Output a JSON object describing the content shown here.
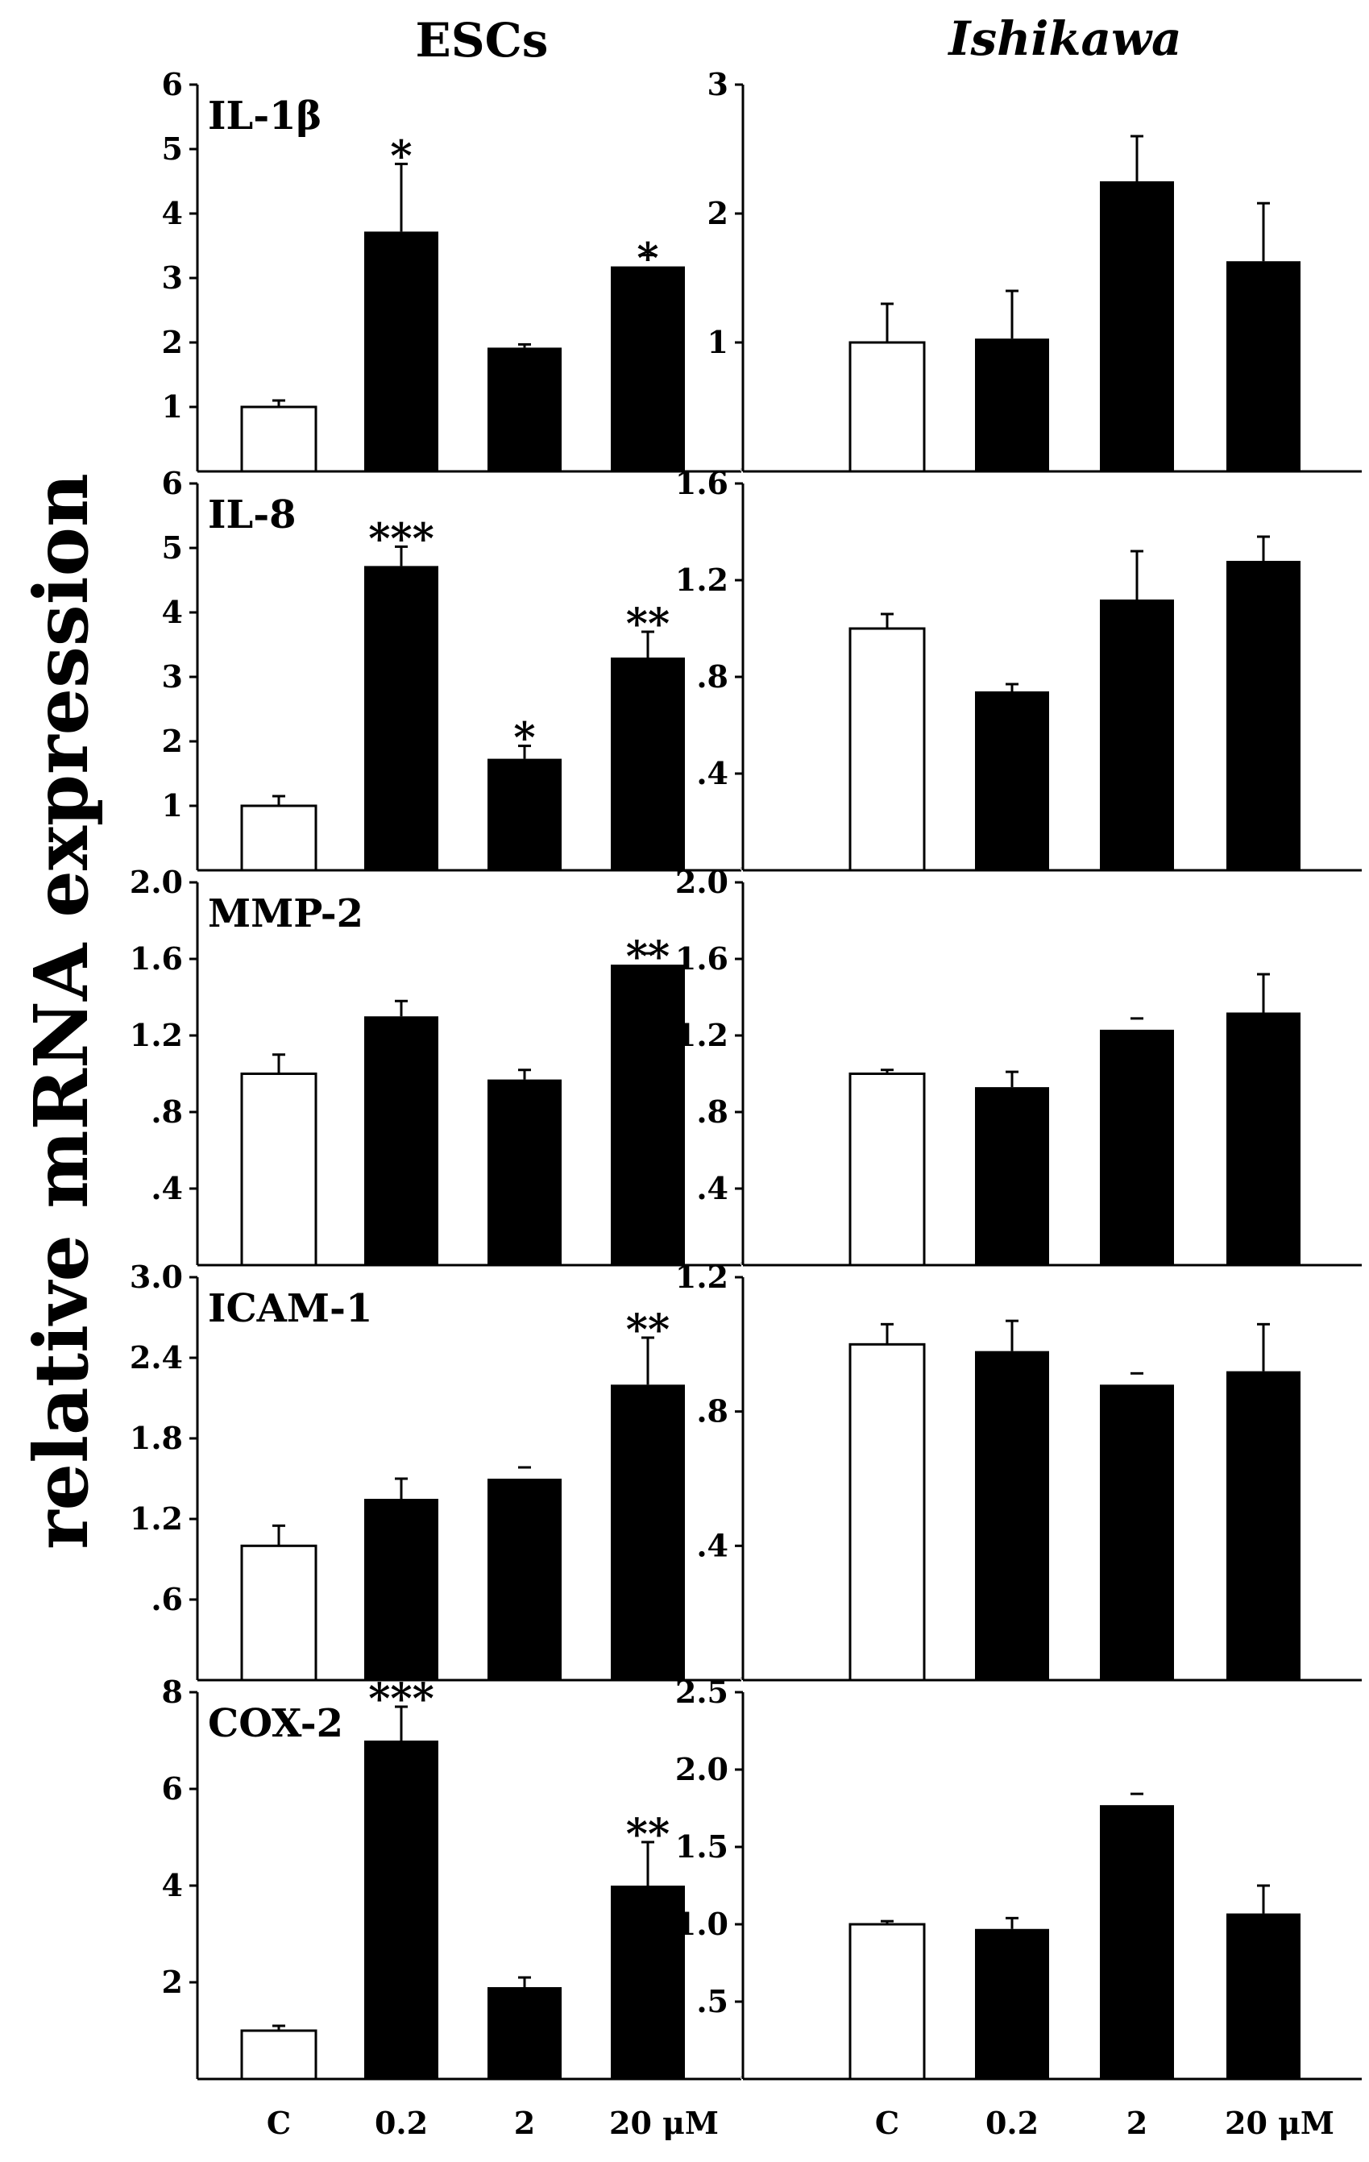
{
  "figure": {
    "column_titles": [
      "ESCs",
      "Ishikawa"
    ],
    "ylabel": "relative mRNA expression",
    "x_categories": [
      "C",
      "0.2",
      "2",
      "20 μM"
    ]
  },
  "colors": {
    "control": "#ffffff",
    "treated": "#000000",
    "axis": "#000000",
    "divider": "#cccccc"
  },
  "chart_data": [
    {
      "type": "bar",
      "column": "ESCs",
      "gene": "IL-1β",
      "categories": [
        "C",
        "0.2",
        "2",
        "20 μM"
      ],
      "values": [
        1.0,
        3.72,
        1.92,
        3.18
      ],
      "errors": [
        0.1,
        1.05,
        0.05,
        0.0
      ],
      "significance": [
        "",
        "*",
        "",
        "*"
      ],
      "ylim": [
        0,
        6
      ],
      "ticks": [
        1,
        2,
        3,
        4,
        5,
        6
      ],
      "tick_labels": [
        "1",
        "2",
        "3",
        "4",
        "5",
        "6"
      ]
    },
    {
      "type": "bar",
      "column": "Ishikawa",
      "gene": "",
      "categories": [
        "C",
        "0.2",
        "2",
        "20 μM"
      ],
      "values": [
        1.0,
        1.03,
        2.25,
        1.63
      ],
      "errors": [
        0.3,
        0.37,
        0.35,
        0.45
      ],
      "significance": [
        "",
        "",
        "",
        ""
      ],
      "ylim": [
        0,
        3
      ],
      "ticks": [
        1,
        2,
        3
      ],
      "tick_labels": [
        "1",
        "2",
        "3"
      ]
    },
    {
      "type": "bar",
      "column": "ESCs",
      "gene": "IL-8",
      "categories": [
        "C",
        "0.2",
        "2",
        "20 μM"
      ],
      "values": [
        1.0,
        4.72,
        1.73,
        3.3
      ],
      "errors": [
        0.15,
        0.3,
        0.2,
        0.4
      ],
      "significance": [
        "",
        "***",
        "*",
        "**"
      ],
      "ylim": [
        0,
        6
      ],
      "ticks": [
        1,
        2,
        3,
        4,
        5,
        6
      ],
      "tick_labels": [
        "1",
        "2",
        "3",
        "4",
        "5",
        "6"
      ]
    },
    {
      "type": "bar",
      "column": "Ishikawa",
      "gene": "",
      "categories": [
        "C",
        "0.2",
        "2",
        "20 μM"
      ],
      "values": [
        1.0,
        0.74,
        1.12,
        1.28
      ],
      "errors": [
        0.06,
        0.03,
        0.2,
        0.1
      ],
      "significance": [
        "",
        "",
        "",
        ""
      ],
      "ylim": [
        0,
        1.6
      ],
      "ticks": [
        0.4,
        0.8,
        1.2,
        1.6
      ],
      "tick_labels": [
        ".4",
        ".8",
        "1.2",
        "1.6"
      ]
    },
    {
      "type": "bar",
      "column": "ESCs",
      "gene": "MMP-2",
      "categories": [
        "C",
        "0.2",
        "2",
        "20 μM"
      ],
      "values": [
        1.0,
        1.3,
        0.97,
        1.57
      ],
      "errors": [
        0.1,
        0.08,
        0.05,
        0.0
      ],
      "significance": [
        "",
        "",
        "",
        "**"
      ],
      "ylim": [
        0,
        2.0
      ],
      "ticks": [
        0.4,
        0.8,
        1.2,
        1.6,
        2.0
      ],
      "tick_labels": [
        ".4",
        ".8",
        "1.2",
        "1.6",
        "2.0"
      ]
    },
    {
      "type": "bar",
      "column": "Ishikawa",
      "gene": "",
      "categories": [
        "C",
        "0.2",
        "2",
        "20 μM"
      ],
      "values": [
        1.0,
        0.93,
        1.23,
        1.32
      ],
      "errors": [
        0.02,
        0.08,
        0.0,
        0.2
      ],
      "significance": [
        "",
        "",
        "",
        ""
      ],
      "ylim": [
        0,
        2.0
      ],
      "ticks": [
        0.4,
        0.8,
        1.2,
        1.6,
        2.0
      ],
      "tick_labels": [
        ".4",
        ".8",
        "1.2",
        "1.6",
        "2.0"
      ]
    },
    {
      "type": "bar",
      "column": "ESCs",
      "gene": "ICAM-1",
      "categories": [
        "C",
        "0.2",
        "2",
        "20 μM"
      ],
      "values": [
        1.0,
        1.35,
        1.5,
        2.2
      ],
      "errors": [
        0.15,
        0.15,
        0.0,
        0.35
      ],
      "significance": [
        "",
        "",
        "",
        "**"
      ],
      "ylim": [
        0,
        3.0
      ],
      "ticks": [
        0.6,
        1.2,
        1.8,
        2.4,
        3.0
      ],
      "tick_labels": [
        ".6",
        "1.2",
        "1.8",
        "2.4",
        "3.0"
      ]
    },
    {
      "type": "bar",
      "column": "Ishikawa",
      "gene": "",
      "categories": [
        "C",
        "0.2",
        "2",
        "20 μM"
      ],
      "values": [
        1.0,
        0.98,
        0.88,
        0.92
      ],
      "errors": [
        0.06,
        0.09,
        0.0,
        0.14
      ],
      "significance": [
        "",
        "",
        "",
        ""
      ],
      "ylim": [
        0,
        1.2
      ],
      "ticks": [
        0.4,
        0.8,
        1.2
      ],
      "tick_labels": [
        ".4",
        ".8",
        "1.2"
      ]
    },
    {
      "type": "bar",
      "column": "ESCs",
      "gene": "COX-2",
      "categories": [
        "C",
        "0.2",
        "2",
        "20 μM"
      ],
      "values": [
        1.0,
        7.0,
        1.9,
        4.0
      ],
      "errors": [
        0.1,
        0.7,
        0.2,
        0.9
      ],
      "significance": [
        "",
        "***",
        "",
        "**"
      ],
      "ylim": [
        0,
        8
      ],
      "ticks": [
        2,
        4,
        6,
        8
      ],
      "tick_labels": [
        "2",
        "4",
        "6",
        "8"
      ]
    },
    {
      "type": "bar",
      "column": "Ishikawa",
      "gene": "",
      "categories": [
        "C",
        "0.2",
        "2",
        "20 μM"
      ],
      "values": [
        1.0,
        0.97,
        1.77,
        1.07
      ],
      "errors": [
        0.02,
        0.07,
        0.0,
        0.18
      ],
      "significance": [
        "",
        "",
        "",
        ""
      ],
      "ylim": [
        0,
        2.5
      ],
      "ticks": [
        0.5,
        1.0,
        1.5,
        2.0,
        2.5
      ],
      "tick_labels": [
        ".5",
        "1.0",
        "1.5",
        "2.0",
        "2.5"
      ]
    }
  ]
}
